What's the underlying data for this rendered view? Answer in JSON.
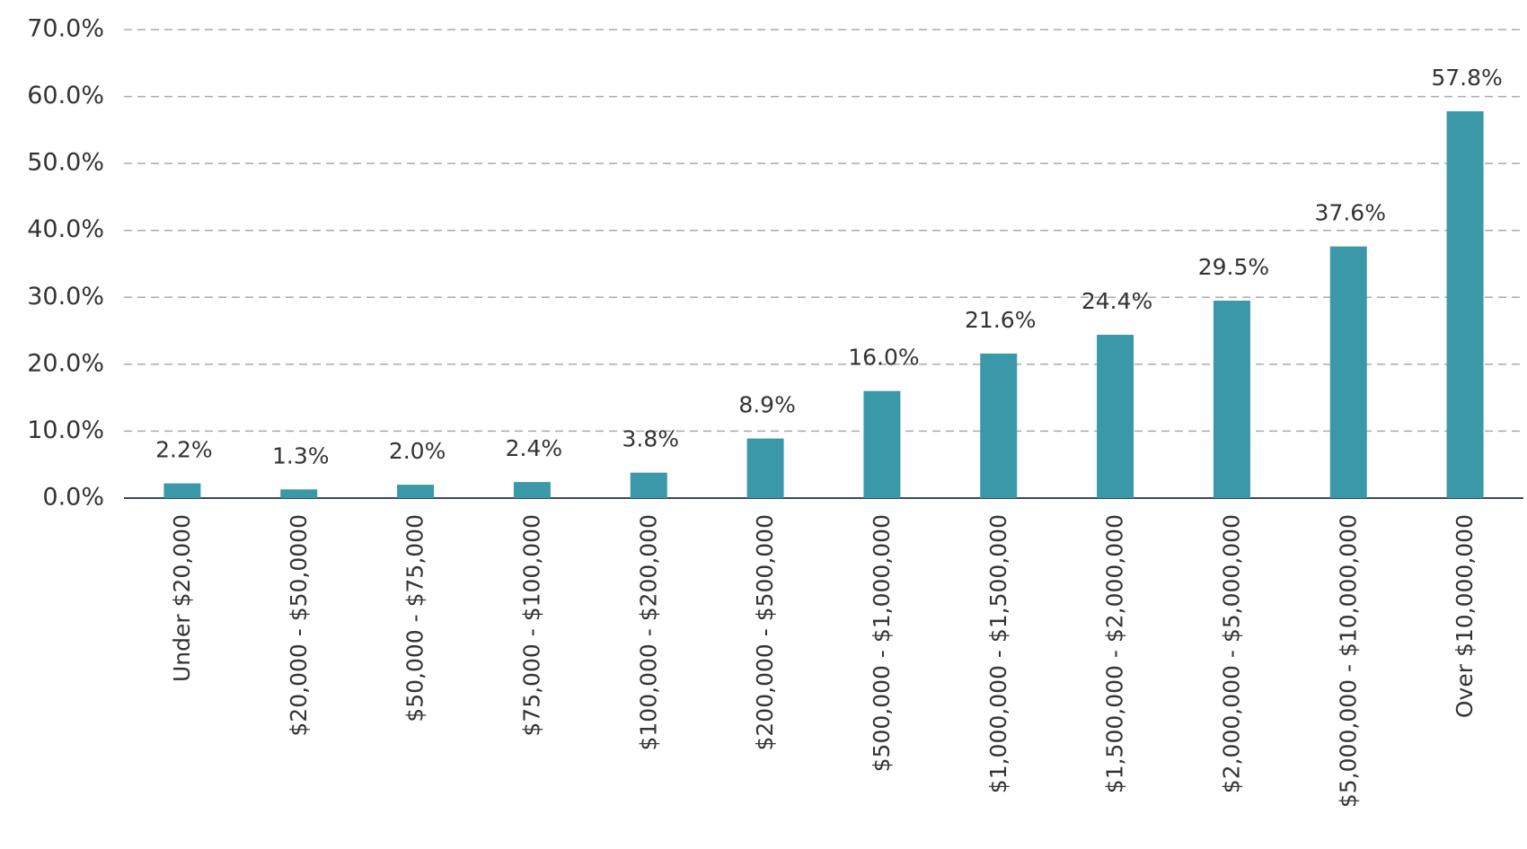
{
  "chart_data": {
    "type": "bar",
    "categories": [
      "Under $20,000",
      "$20,000 - $50,0000",
      "$50,000 - $75,000",
      "$75,000 - $100,000",
      "$100,000 - $200,000",
      "$200,000 - $500,000",
      "$500,000 - $1,000,000",
      "$1,000,000 - $1,500,000",
      "$1,500,000 - $2,000,000",
      "$2,000,000 - $5,000,000",
      "$5,000,000 - $10,000,000",
      "Over $10,000,000"
    ],
    "values": [
      2.2,
      1.3,
      2.0,
      2.4,
      3.8,
      8.9,
      16.0,
      21.6,
      24.4,
      29.5,
      37.6,
      57.8
    ],
    "value_labels": [
      "2.2%",
      "1.3%",
      "2.0%",
      "2.4%",
      "3.8%",
      "8.9%",
      "16.0%",
      "21.6%",
      "24.4%",
      "29.5%",
      "37.6%",
      "57.8%"
    ],
    "color": "#3a98a8",
    "ylim": [
      0,
      70
    ],
    "yticks": [
      {
        "value": 0,
        "label": "0.0%"
      },
      {
        "value": 10,
        "label": "10.0%"
      },
      {
        "value": 20,
        "label": "20.0%"
      },
      {
        "value": 30,
        "label": "30.0%"
      },
      {
        "value": 40,
        "label": "40.0%"
      },
      {
        "value": 50,
        "label": "50.0%"
      },
      {
        "value": 60,
        "label": "60.0%"
      },
      {
        "value": 70,
        "label": "70.0%"
      }
    ],
    "grid": true
  }
}
